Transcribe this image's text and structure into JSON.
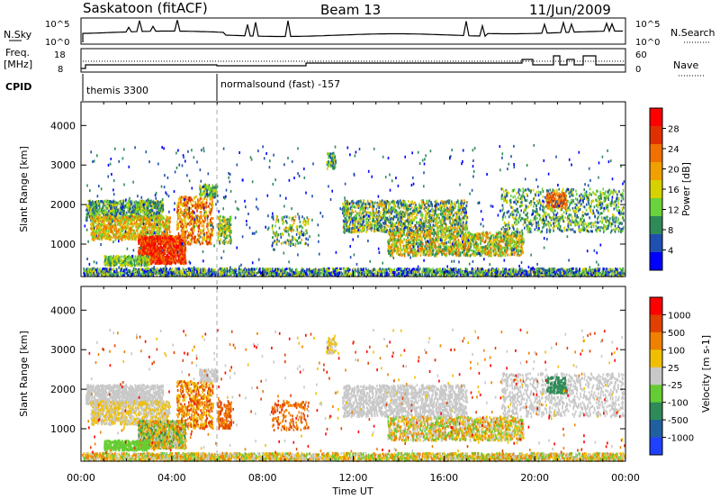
{
  "header": {
    "station": "Saskatoon (fitACF)",
    "beam": "Beam 13",
    "date": "11/Jun/2009"
  },
  "strip": {
    "nsky_label": "N.Sky",
    "nsearch_label": "N.Search",
    "nsky_ticks": [
      "10^5",
      "10^0"
    ],
    "nsearch_ticks": [
      "10^5",
      "10^0"
    ],
    "freq_label": "Freq.",
    "freq_unit": "[MHz]",
    "freq_ticks": [
      "18",
      "8"
    ],
    "nave_label": "Nave",
    "nave_ticks": [
      "60",
      "0"
    ],
    "cpid_label": "CPID",
    "cpid_segments": [
      {
        "name": "themis 3300",
        "start_hour": 0
      },
      {
        "name": "normalsound (fast) -157",
        "start_hour": 6
      }
    ]
  },
  "chart_data": {
    "type": "heatmap",
    "xlabel": "Time UT",
    "x_ticks": [
      "00:00",
      "04:00",
      "08:00",
      "12:00",
      "16:00",
      "20:00",
      "00:00"
    ],
    "xlim_hours": [
      0,
      24
    ],
    "panels": [
      {
        "id": "power",
        "ylabel": "Slant Range [km]",
        "yticks": [
          "1000",
          "2000",
          "3000",
          "4000"
        ],
        "ylim": [
          180,
          4600
        ],
        "colorbar_label": "Power [dB]",
        "colorbar_ticks": [
          "28",
          "24",
          "20",
          "16",
          "12",
          "8",
          "4"
        ],
        "colors": [
          "#0000ff",
          "#1f4fb0",
          "#2e8b57",
          "#6ad23a",
          "#d6d100",
          "#f0a000",
          "#f07000",
          "#e03000",
          "#ff0000"
        ]
      },
      {
        "id": "velocity",
        "ylabel": "Slant Range [km]",
        "yticks": [
          "1000",
          "2000",
          "3000",
          "4000"
        ],
        "ylim": [
          180,
          4600
        ],
        "colorbar_label": "Velocity [m s-1]",
        "colorbar_ticks": [
          "1000",
          "500",
          "100",
          "25",
          "-25",
          "-100",
          "-500",
          "-1000"
        ],
        "colors": [
          "#2040ff",
          "#2060a0",
          "#2e8b57",
          "#66cc33",
          "#c8c8c8",
          "#f0c000",
          "#f08000",
          "#e04000",
          "#ff0000"
        ]
      }
    ]
  }
}
